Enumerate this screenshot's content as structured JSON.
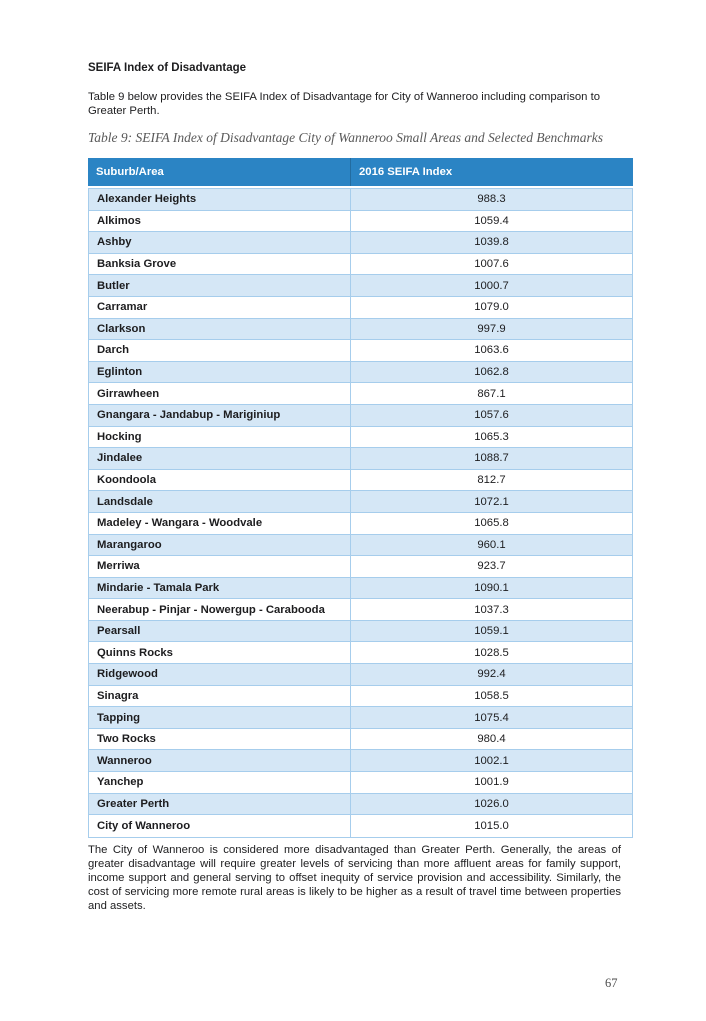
{
  "page": {
    "heading": "SEIFA Index of Disadvantage",
    "intro": "Table 9 below provides the SEIFA Index of Disadvantage for City of Wanneroo including comparison to\nGreater Perth.",
    "table_caption": "Table 9: SEIFA Index of Disadvantage City of Wanneroo Small Areas and Selected Benchmarks",
    "body": "The City of Wanneroo is considered more disadvantaged than Greater Perth. Generally, the areas of greater disadvantage will require greater levels of servicing than more affluent areas for family support, income support and general serving to offset inequity of service provision and accessibility. Similarly, the cost of servicing more remote rural areas is likely to be higher as a result of travel time between properties and assets.",
    "page_number": "67"
  },
  "table": {
    "columns": [
      "Suburb/Area",
      "2016 SEIFA Index"
    ],
    "rows": [
      [
        "Alexander Heights",
        "988.3"
      ],
      [
        "Alkimos",
        "1059.4"
      ],
      [
        "Ashby",
        "1039.8"
      ],
      [
        "Banksia Grove",
        "1007.6"
      ],
      [
        "Butler",
        "1000.7"
      ],
      [
        "Carramar",
        "1079.0"
      ],
      [
        "Clarkson",
        "997.9"
      ],
      [
        "Darch",
        "1063.6"
      ],
      [
        "Eglinton",
        "1062.8"
      ],
      [
        "Girrawheen",
        "867.1"
      ],
      [
        "Gnangara - Jandabup - Mariginiup",
        "1057.6"
      ],
      [
        "Hocking",
        "1065.3"
      ],
      [
        "Jindalee",
        "1088.7"
      ],
      [
        "Koondoola",
        "812.7"
      ],
      [
        "Landsdale",
        "1072.1"
      ],
      [
        "Madeley - Wangara - Woodvale",
        "1065.8"
      ],
      [
        "Marangaroo",
        "960.1"
      ],
      [
        "Merriwa",
        "923.7"
      ],
      [
        "Mindarie - Tamala Park",
        "1090.1"
      ],
      [
        "Neerabup - Pinjar - Nowergup - Carabooda",
        "1037.3"
      ],
      [
        "Pearsall",
        "1059.1"
      ],
      [
        "Quinns Rocks",
        "1028.5"
      ],
      [
        "Ridgewood",
        "992.4"
      ],
      [
        "Sinagra",
        "1058.5"
      ],
      [
        "Tapping",
        "1075.4"
      ],
      [
        "Two Rocks",
        "980.4"
      ],
      [
        "Wanneroo",
        "1002.1"
      ],
      [
        "Yanchep",
        "1001.9"
      ],
      [
        "Greater Perth",
        "1026.0"
      ],
      [
        "City of Wanneroo",
        "1015.0"
      ]
    ]
  },
  "colors": {
    "header_bg": "#2b84c4",
    "header_text": "#ffffff",
    "row_alt_bg": "#d5e7f6",
    "table_border": "#a6cdec",
    "caption_text": "#595959",
    "page_number_text": "#4d4d4d"
  }
}
